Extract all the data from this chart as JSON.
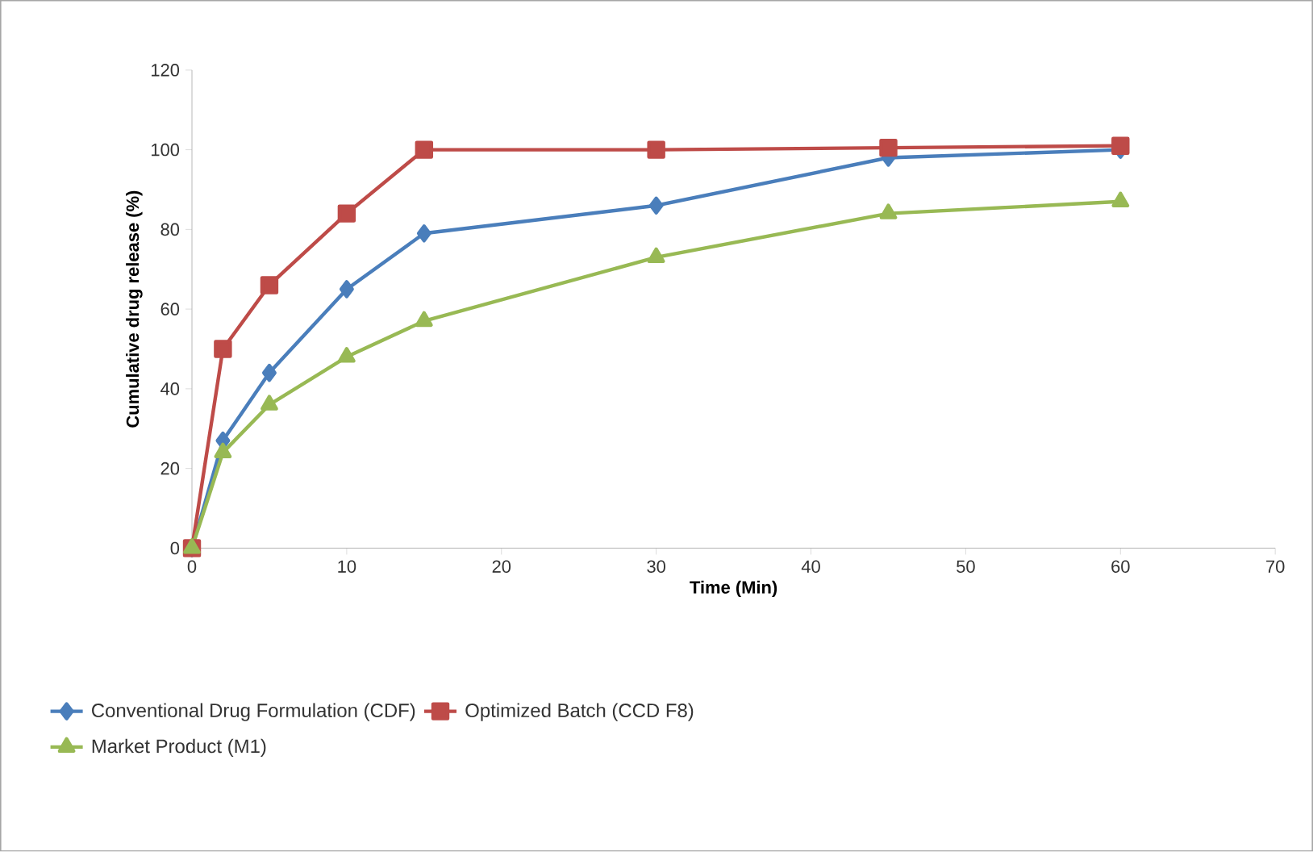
{
  "chart_data": {
    "type": "line",
    "xlabel": "Time (Min)",
    "ylabel": "Cumulative drug release (%)",
    "x": [
      0,
      2,
      5,
      10,
      15,
      30,
      45,
      60
    ],
    "xlim": [
      0,
      70
    ],
    "xticks": [
      0,
      10,
      20,
      30,
      40,
      50,
      60,
      70
    ],
    "ylim": [
      0,
      120
    ],
    "yticks": [
      0,
      20,
      40,
      60,
      80,
      100,
      120
    ],
    "legend": "bottom",
    "series": [
      {
        "name": "Conventional Drug Formulation (CDF)",
        "color": "#4a7ebb",
        "marker": "diamond",
        "values": [
          0,
          27,
          44,
          65,
          79,
          86,
          98,
          100
        ]
      },
      {
        "name": "Optimized  Batch (CCD F8)",
        "color": "#be4b48",
        "marker": "square",
        "values": [
          0,
          50,
          66,
          84,
          100,
          100,
          100.5,
          101
        ]
      },
      {
        "name": "Market Product (M1)",
        "color": "#98b954",
        "marker": "triangle",
        "values": [
          0,
          24,
          36,
          48,
          57,
          73,
          84,
          87
        ]
      }
    ]
  }
}
